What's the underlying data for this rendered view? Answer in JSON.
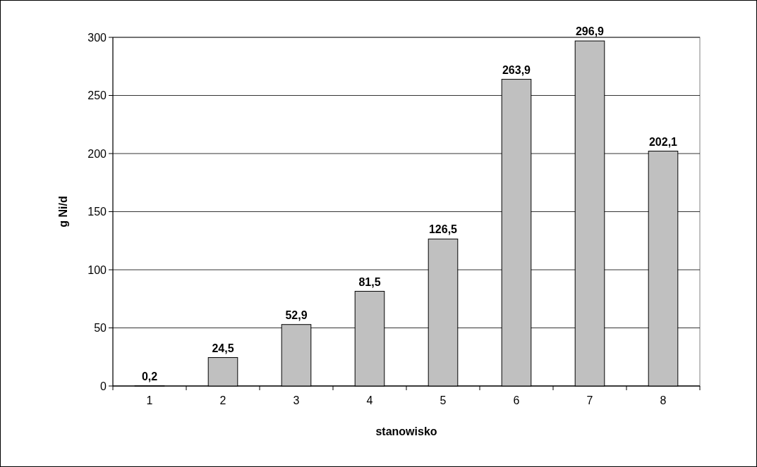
{
  "chart_data": {
    "type": "bar",
    "xlabel": "stanowisko",
    "ylabel": "g Ni/d",
    "categories": [
      "1",
      "2",
      "3",
      "4",
      "5",
      "6",
      "7",
      "8"
    ],
    "values": [
      0.2,
      24.5,
      52.9,
      81.5,
      126.5,
      263.9,
      296.9,
      202.1
    ],
    "value_labels": [
      "0,2",
      "24,5",
      "52,9",
      "81,5",
      "126,5",
      "263,9",
      "296,9",
      "202,1"
    ],
    "color": "#c0c0c0",
    "ylim": [
      0,
      300
    ],
    "yticks": [
      0,
      50,
      100,
      150,
      200,
      250,
      300
    ],
    "grid": "y"
  }
}
